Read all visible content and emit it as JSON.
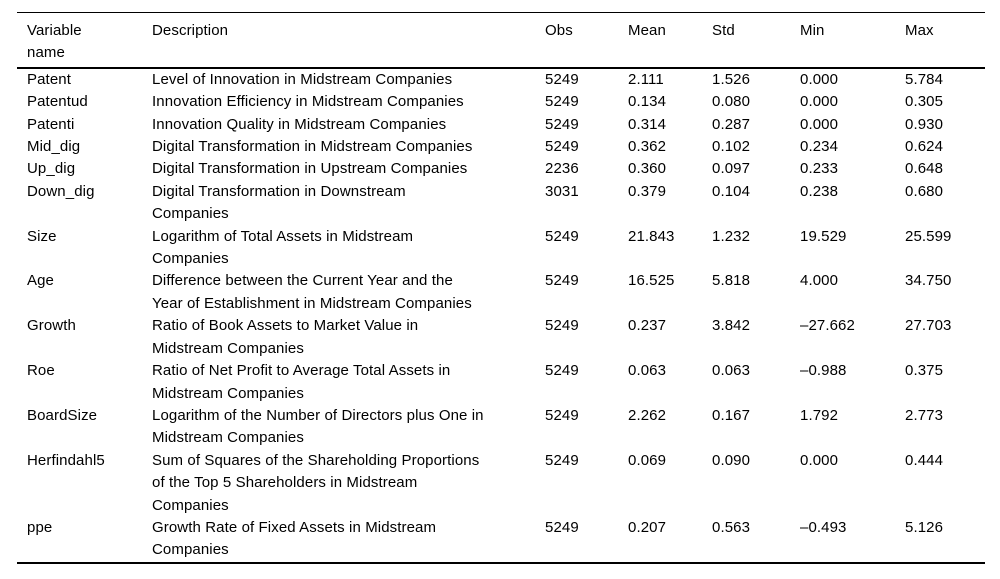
{
  "table": {
    "columns": [
      {
        "key": "variable",
        "label": "Variable\nname"
      },
      {
        "key": "description",
        "label": "Description"
      },
      {
        "key": "obs",
        "label": "Obs"
      },
      {
        "key": "mean",
        "label": "Mean"
      },
      {
        "key": "std",
        "label": "Std"
      },
      {
        "key": "min",
        "label": "Min"
      },
      {
        "key": "max",
        "label": "Max"
      }
    ],
    "rows": [
      {
        "variable": "Patent",
        "description": "Level of Innovation in Midstream Companies",
        "obs": "5249",
        "mean": "2.111",
        "std": "1.526",
        "min": "0.000",
        "max": "5.784"
      },
      {
        "variable": "Patentud",
        "description": "Innovation Efficiency in Midstream Companies",
        "obs": "5249",
        "mean": "0.134",
        "std": "0.080",
        "min": "0.000",
        "max": "0.305"
      },
      {
        "variable": "Patenti",
        "description": "Innovation Quality in Midstream Companies",
        "obs": "5249",
        "mean": "0.314",
        "std": "0.287",
        "min": "0.000",
        "max": "0.930"
      },
      {
        "variable": "Mid_dig",
        "description": "Digital Transformation in Midstream Companies",
        "obs": "5249",
        "mean": "0.362",
        "std": "0.102",
        "min": "0.234",
        "max": "0.624"
      },
      {
        "variable": "Up_dig",
        "description": "Digital Transformation in Upstream Companies",
        "obs": "2236",
        "mean": "0.360",
        "std": "0.097",
        "min": "0.233",
        "max": "0.648"
      },
      {
        "variable": "Down_dig",
        "description": "Digital Transformation in Downstream\nCompanies",
        "obs": "3031",
        "mean": "0.379",
        "std": "0.104",
        "min": "0.238",
        "max": "0.680"
      },
      {
        "variable": "Size",
        "description": "Logarithm of Total Assets in Midstream\nCompanies",
        "obs": "5249",
        "mean": "21.843",
        "std": "1.232",
        "min": "19.529",
        "max": "25.599"
      },
      {
        "variable": "Age",
        "description": "Difference between the Current Year and the\nYear of Establishment in Midstream Companies",
        "obs": "5249",
        "mean": "16.525",
        "std": "5.818",
        "min": "4.000",
        "max": "34.750"
      },
      {
        "variable": "Growth",
        "description": "Ratio of Book Assets to Market Value in\nMidstream Companies",
        "obs": "5249",
        "mean": "0.237",
        "std": "3.842",
        "min": "–27.662",
        "max": "27.703"
      },
      {
        "variable": "Roe",
        "description": "Ratio of Net Profit to Average Total Assets in\nMidstream Companies",
        "obs": "5249",
        "mean": "0.063",
        "std": "0.063",
        "min": "–0.988",
        "max": "0.375"
      },
      {
        "variable": "BoardSize",
        "description": "Logarithm of the Number of Directors plus One in\nMidstream Companies",
        "obs": "5249",
        "mean": "2.262",
        "std": "0.167",
        "min": "1.792",
        "max": "2.773"
      },
      {
        "variable": "Herfindahl5",
        "description": "Sum of Squares of the Shareholding Proportions\nof the Top 5 Shareholders in Midstream\nCompanies",
        "obs": "5249",
        "mean": "0.069",
        "std": "0.090",
        "min": "0.000",
        "max": "0.444"
      },
      {
        "variable": "ppe",
        "description": "Growth Rate of Fixed Assets in Midstream\nCompanies",
        "obs": "5249",
        "mean": "0.207",
        "std": "0.563",
        "min": "–0.493",
        "max": "5.126"
      }
    ]
  }
}
